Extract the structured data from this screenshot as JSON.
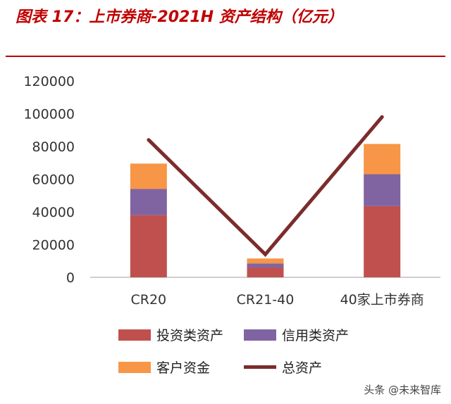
{
  "header": {
    "title": "图表 17：上市券商-2021H 资产结构（亿元）"
  },
  "chart_data": {
    "type": "bar",
    "stacked": true,
    "categories": [
      "CR20",
      "CR21-40",
      "40家上市券商"
    ],
    "series": [
      {
        "name": "投资类资产",
        "values": [
          38000,
          6000,
          43500
        ],
        "color": "#C0504D"
      },
      {
        "name": "信用类资产",
        "values": [
          16000,
          2500,
          19500
        ],
        "color": "#8064A2"
      },
      {
        "name": "客户资金",
        "values": [
          15500,
          3000,
          18500
        ],
        "color": "#F79646"
      }
    ],
    "line_series": {
      "name": "总资产",
      "values": [
        84000,
        14000,
        98000
      ],
      "color": "#7B2C2C"
    },
    "yticks": [
      "0",
      "20000",
      "40000",
      "60000",
      "80000",
      "100000",
      "120000"
    ],
    "ylim": [
      0,
      120000
    ],
    "title": "",
    "xlabel": "",
    "ylabel": "",
    "legend_position": "bottom"
  },
  "legend": {
    "items": [
      {
        "label": "投资类资产",
        "kind": "bar",
        "color": "#C0504D"
      },
      {
        "label": "信用类资产",
        "kind": "bar",
        "color": "#8064A2"
      },
      {
        "label": "客户资金",
        "kind": "bar",
        "color": "#F79646"
      },
      {
        "label": "总资产",
        "kind": "line",
        "color": "#7B2C2C"
      }
    ]
  },
  "watermark": "头条 @未来智库"
}
